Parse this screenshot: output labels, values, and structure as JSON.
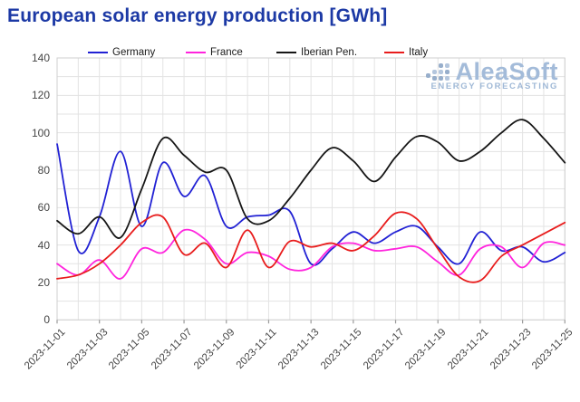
{
  "title": "European solar energy production [GWh]",
  "colors": {
    "title": "#1c39a5",
    "grid": "#e3e3e3",
    "frame": "#cfcfcf",
    "tick": "#9a9a9a",
    "tick_label": "#454545",
    "watermark_dot_a": "#97aecb",
    "watermark_dot_b": "#b4c6dd"
  },
  "watermark": {
    "brand": "AleaSoft",
    "tagline": "ENERGY FORECASTING"
  },
  "chart_data": {
    "type": "line",
    "title": "European solar energy production [GWh]",
    "unit": "GWh",
    "grid": true,
    "legend_position": "top",
    "ylim": [
      0,
      140
    ],
    "yticks": [
      0,
      20,
      40,
      60,
      80,
      100,
      120,
      140
    ],
    "x": [
      "2023-11-01",
      "2023-11-02",
      "2023-11-03",
      "2023-11-04",
      "2023-11-05",
      "2023-11-06",
      "2023-11-07",
      "2023-11-08",
      "2023-11-09",
      "2023-11-10",
      "2023-11-11",
      "2023-11-12",
      "2023-11-13",
      "2023-11-14",
      "2023-11-15",
      "2023-11-16",
      "2023-11-17",
      "2023-11-18",
      "2023-11-19",
      "2023-11-20",
      "2023-11-21",
      "2023-11-22",
      "2023-11-23",
      "2023-11-24",
      "2023-11-25"
    ],
    "x_tick_labels": [
      "2023-11-01",
      "2023-11-03",
      "2023-11-05",
      "2023-11-07",
      "2023-11-09",
      "2023-11-11",
      "2023-11-13",
      "2023-11-15",
      "2023-11-17",
      "2023-11-19",
      "2023-11-21",
      "2023-11-23",
      "2023-11-25"
    ],
    "series": [
      {
        "name": "Germany",
        "color": "#2121d4",
        "values": [
          94,
          37,
          55,
          90,
          50,
          84,
          66,
          77,
          50,
          55,
          56,
          58,
          30,
          38,
          47,
          41,
          47,
          50,
          39,
          30,
          47,
          37,
          39,
          31,
          36
        ]
      },
      {
        "name": "France",
        "color": "#ff24dd",
        "values": [
          30,
          24,
          32,
          22,
          38,
          36,
          48,
          43,
          30,
          36,
          34,
          27,
          28,
          39,
          41,
          37,
          38,
          39,
          31,
          24,
          38,
          39,
          28,
          41,
          40
        ]
      },
      {
        "name": "Iberian Pen.",
        "color": "#161616",
        "values": [
          53,
          46,
          55,
          44,
          70,
          97,
          88,
          79,
          80,
          54,
          53,
          65,
          80,
          92,
          85,
          74,
          87,
          98,
          95,
          85,
          90,
          100,
          107,
          97,
          84
        ]
      },
      {
        "name": "Italy",
        "color": "#e81c1c",
        "values": [
          22,
          24,
          30,
          40,
          52,
          55,
          35,
          41,
          28,
          48,
          28,
          42,
          39,
          41,
          37,
          45,
          57,
          54,
          38,
          23,
          21,
          34,
          40,
          46,
          52
        ]
      }
    ]
  }
}
